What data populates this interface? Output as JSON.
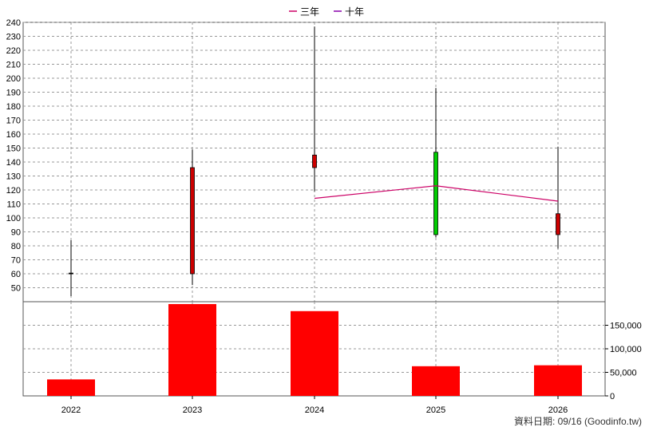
{
  "legend": {
    "items": [
      {
        "label": "三年",
        "color": "#cc0066"
      },
      {
        "label": "十年",
        "color": "#8800aa"
      }
    ]
  },
  "footer": {
    "source": "資料日期: 09/16  (Goodinfo.tw)"
  },
  "chart_data": [
    {
      "type": "candlestick",
      "title": "",
      "x_categories": [
        "2022",
        "2023",
        "2024",
        "2025",
        "2026"
      ],
      "ylim": [
        40,
        240
      ],
      "y_ticks": [
        50,
        60,
        70,
        80,
        90,
        100,
        110,
        120,
        130,
        140,
        150,
        160,
        170,
        180,
        190,
        200,
        210,
        220,
        230,
        240
      ],
      "grid": true,
      "candles": [
        {
          "x": "2022",
          "open": 60,
          "close": 60.5,
          "high": 84,
          "low": 44,
          "color": "#000000"
        },
        {
          "x": "2023",
          "open": 60,
          "close": 136,
          "high": 149,
          "low": 52,
          "color": "#cc0000"
        },
        {
          "x": "2024",
          "open": 136,
          "close": 145,
          "high": 237,
          "low": 119,
          "color": "#cc0000"
        },
        {
          "x": "2025",
          "open": 147,
          "close": 88,
          "high": 193,
          "low": 86,
          "color": "#00cc00"
        },
        {
          "x": "2026",
          "open": 88,
          "close": 103,
          "high": 151,
          "low": 78,
          "color": "#cc0000"
        }
      ],
      "series": [
        {
          "name": "三年",
          "color": "#cc0066",
          "points": [
            {
              "x": "2024",
              "y": 114
            },
            {
              "x": "2025",
              "y": 123
            },
            {
              "x": "2026",
              "y": 112
            }
          ]
        }
      ]
    },
    {
      "type": "bar",
      "title": "",
      "categories": [
        "2022",
        "2023",
        "2024",
        "2025",
        "2026"
      ],
      "values": [
        35000,
        195000,
        180000,
        63000,
        65000
      ],
      "ylim": [
        0,
        200000
      ],
      "y_ticks": [
        0,
        50000,
        100000,
        150000
      ],
      "y_tick_labels": [
        "0",
        "50,000",
        "100,000",
        "150,000"
      ],
      "color": "#ff0000",
      "grid": true
    }
  ]
}
